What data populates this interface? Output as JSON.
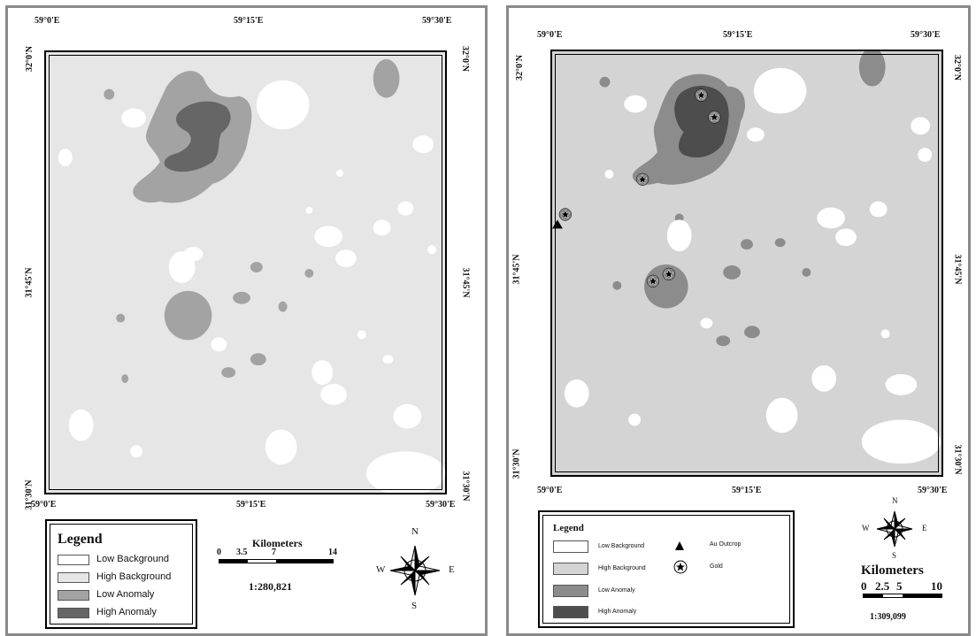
{
  "colors": {
    "low_background": "#ffffff",
    "high_background": "#e6e6e6",
    "high_background_right": "#d4d4d4",
    "low_anomaly": "#a3a3a3",
    "low_anomaly_right": "#8c8c8c",
    "high_anomaly": "#666666",
    "high_anomaly_right": "#4d4d4d"
  },
  "left_map": {
    "coords": {
      "top_left": "59°0'E",
      "top_mid": "59°15'E",
      "top_right": "59°30'E",
      "bottom_left": "59°0'E",
      "bottom_mid": "59°15'E",
      "bottom_right": "59°30'E",
      "left_top": "32°0'N",
      "left_mid": "31°45'N",
      "left_bottom": "31°30'N",
      "right_top": "32°0'N",
      "right_mid": "31°45'N",
      "right_bottom": "31°30'N"
    },
    "legend": {
      "title": "Legend",
      "items": [
        {
          "label": "Low Background",
          "color": "#ffffff"
        },
        {
          "label": "High Background",
          "color": "#e6e6e6"
        },
        {
          "label": "Low Anomaly",
          "color": "#a3a3a3"
        },
        {
          "label": "High Anomaly",
          "color": "#666666"
        }
      ]
    },
    "scale": {
      "title": "Kilometers",
      "ticks": [
        "0",
        "3.5",
        "7",
        "14"
      ],
      "ratio": "1:280,821"
    },
    "compass": {
      "n": "N",
      "s": "S",
      "e": "E",
      "w": "W"
    }
  },
  "right_map": {
    "coords": {
      "top_left": "59°0'E",
      "top_mid": "59°15'E",
      "top_right": "59°30'E",
      "bottom_left": "59°0'E",
      "bottom_mid": "59°15'E",
      "bottom_right": "59°30'E",
      "left_top": "32°0'N",
      "left_mid": "31°45'N",
      "left_bottom": "31°30'N",
      "right_top": "32°0'N",
      "right_mid": "31°45'N",
      "right_bottom": "31°30'N"
    },
    "legend": {
      "title": "Legend",
      "items": [
        {
          "label": "Low Background",
          "color": "#ffffff"
        },
        {
          "label": "High Background",
          "color": "#d4d4d4"
        },
        {
          "label": "Low Anomaly",
          "color": "#8c8c8c"
        },
        {
          "label": "High Anomaly",
          "color": "#4d4d4d"
        }
      ],
      "symbols": [
        {
          "label": "Au Outcrop",
          "icon": "triangle-icon"
        },
        {
          "label": "Gold",
          "icon": "star-icon"
        }
      ]
    },
    "scale": {
      "title": "Kilometers",
      "ticks": [
        "0",
        "2.5",
        "5",
        "10"
      ],
      "ratio": "1:309,099"
    },
    "compass": {
      "n": "N",
      "s": "S",
      "e": "E",
      "w": "W"
    }
  }
}
